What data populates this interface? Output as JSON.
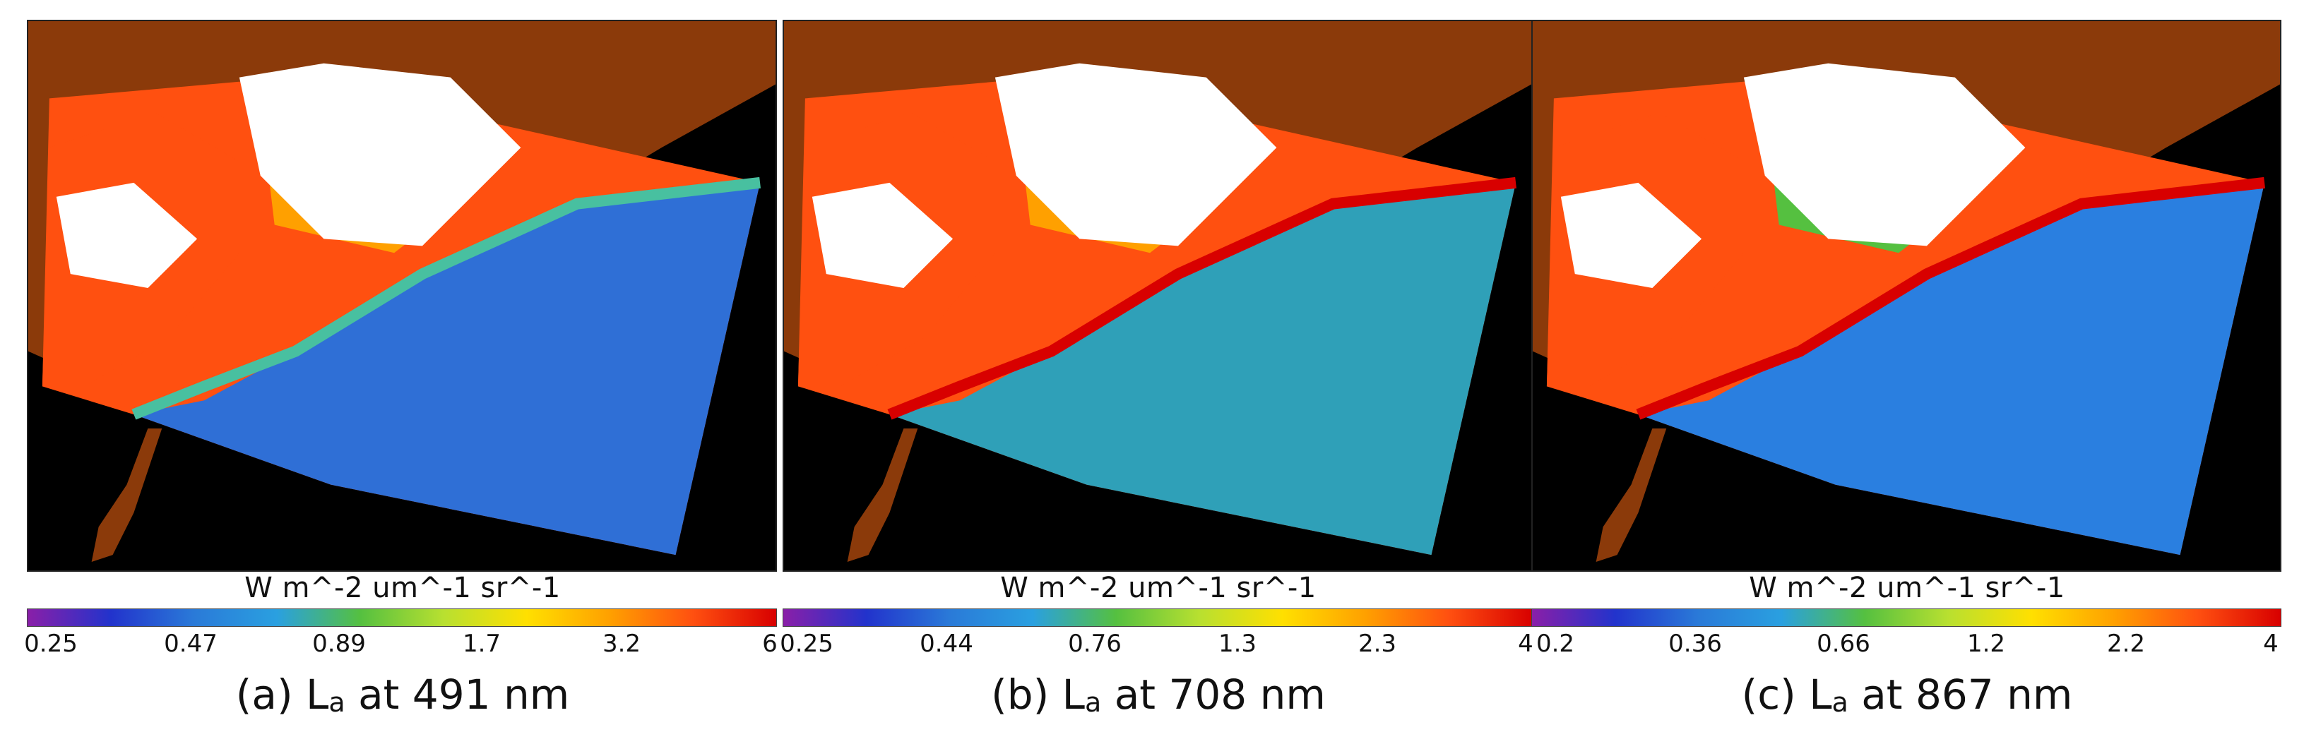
{
  "colors": {
    "land": "#8B3A0A",
    "nodata": "#000000",
    "cloud": "#ffffff",
    "colormap": [
      "#8a1fa8",
      "#2233cc",
      "#2a7ad8",
      "#2aa0e0",
      "#55c040",
      "#b8e030",
      "#ffe000",
      "#ffa000",
      "#ff5010",
      "#d80000"
    ]
  },
  "panels": [
    {
      "unit_label": "W m^-2 um^-1 sr^-1",
      "ticks": [
        "0.25",
        "0.47",
        "0.89",
        "1.7",
        "3.2",
        "6"
      ],
      "caption_prefix": "(a) L",
      "caption_sub": "a",
      "caption_suffix": " at 491 nm",
      "water_color": "#2f6fd6",
      "coast_color": "#48c0a0"
    },
    {
      "unit_label": "W m^-2 um^-1 sr^-1",
      "ticks": [
        "0.25",
        "0.44",
        "0.76",
        "1.3",
        "2.3",
        "4"
      ],
      "caption_prefix": "(b) L",
      "caption_sub": "a",
      "caption_suffix": " at 708 nm",
      "water_color": "#2fa0b8",
      "coast_color": "#40c040"
    },
    {
      "unit_label": "W m^-2 um^-1 sr^-1",
      "ticks": [
        "0.2",
        "0.36",
        "0.66",
        "1.2",
        "2.2",
        "4"
      ],
      "caption_prefix": "(c) L",
      "caption_sub": "a",
      "caption_suffix": " at 867 nm",
      "water_color": "#2a7fe0",
      "coast_color": "#2a9fd8"
    }
  ]
}
